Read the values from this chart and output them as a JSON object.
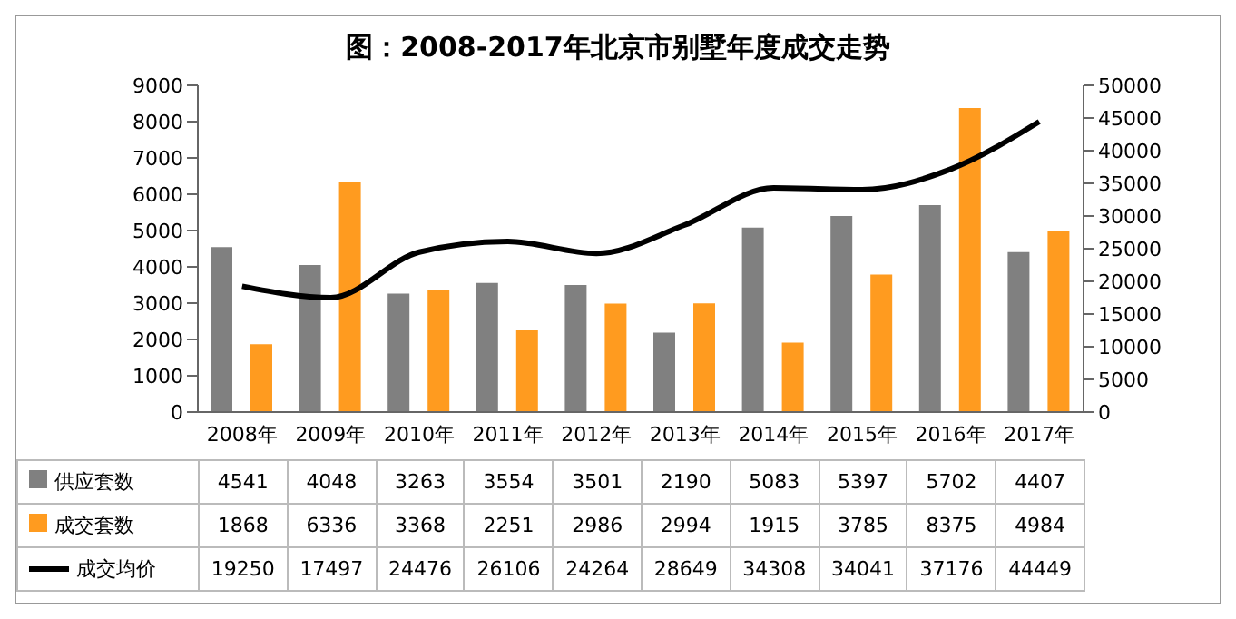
{
  "chart_data": {
    "type": "bar",
    "title": "图：2008-2017年北京市别墅年度成交走势",
    "categories": [
      "2008年",
      "2009年",
      "2010年",
      "2011年",
      "2012年",
      "2013年",
      "2014年",
      "2015年",
      "2016年",
      "2017年"
    ],
    "series": [
      {
        "name": "供应套数",
        "color": "#808080",
        "values": [
          4541,
          4048,
          3263,
          3554,
          3501,
          2190,
          5083,
          5397,
          5702,
          4407
        ]
      },
      {
        "name": "成交套数",
        "color": "#ff9b1f",
        "values": [
          1868,
          6336,
          3368,
          2251,
          2986,
          2994,
          1915,
          3785,
          8375,
          4984
        ]
      },
      {
        "name": "成交均价",
        "type": "line",
        "axis": "y2",
        "color": "#000000",
        "values": [
          19250,
          17497,
          24476,
          26106,
          24264,
          28649,
          34308,
          34041,
          37176,
          44449
        ]
      }
    ],
    "ylim": [
      0,
      9000
    ],
    "yticks": [
      0,
      1000,
      2000,
      3000,
      4000,
      5000,
      6000,
      7000,
      8000,
      9000
    ],
    "y2lim": [
      0,
      50000
    ],
    "y2ticks": [
      0,
      5000,
      10000,
      15000,
      20000,
      25000,
      30000,
      35000,
      40000,
      45000,
      50000
    ],
    "legend": "bottom",
    "data_labels": true,
    "marker": "none",
    "line_style": "solid"
  }
}
